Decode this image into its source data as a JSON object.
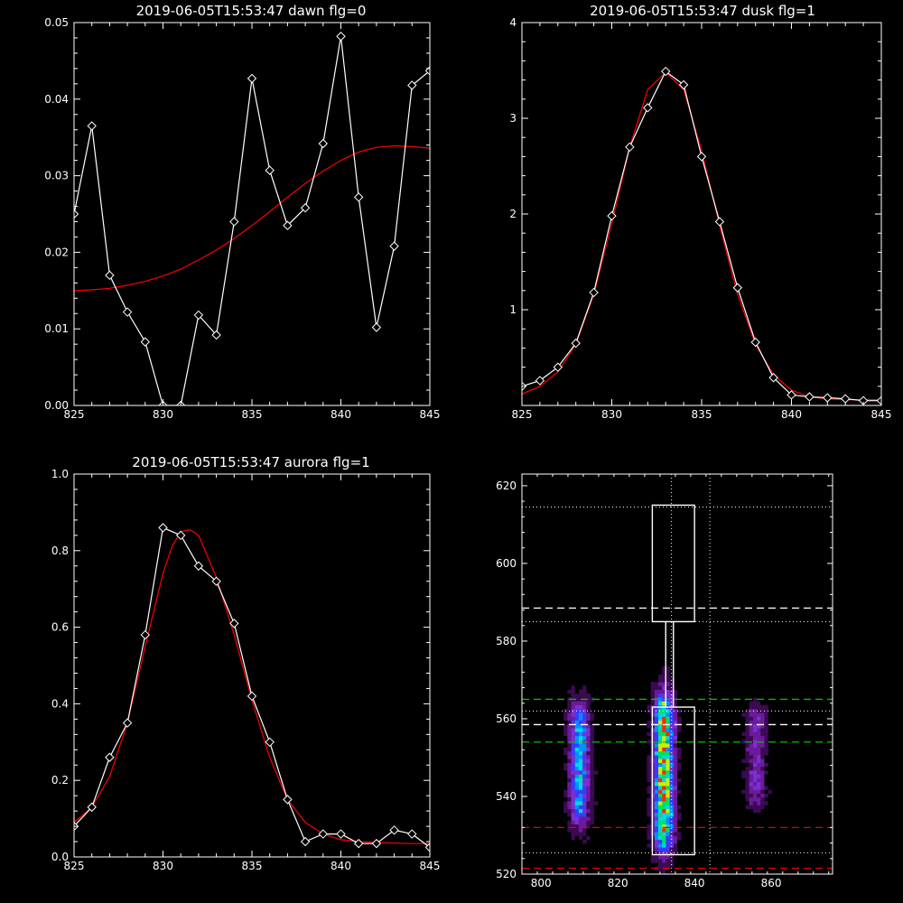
{
  "chart_data": [
    {
      "type": "line",
      "title": "2019-06-05T15:53:47 dawn flg=0",
      "xlim": [
        825,
        845
      ],
      "ylim": [
        0,
        0.05
      ],
      "xticks": [
        "825",
        "830",
        "835",
        "840",
        "845"
      ],
      "yticks": [
        "0.00",
        "0.01",
        "0.02",
        "0.03",
        "0.04",
        "0.05"
      ],
      "series": [
        {
          "color": "#ffffff",
          "marker": "diamond",
          "x": [
            825,
            826,
            827,
            828,
            829,
            830,
            831,
            832,
            833,
            834,
            835,
            836,
            837,
            838,
            839,
            840,
            841,
            842,
            843,
            844,
            845
          ],
          "y": [
            0.025,
            0.0365,
            0.017,
            0.0122,
            0.0083,
            0.0,
            0.0,
            0.0118,
            0.0092,
            0.024,
            0.0427,
            0.0307,
            0.0235,
            0.0258,
            0.0342,
            0.0482,
            0.0272,
            0.0102,
            0.0208,
            0.0418,
            0.0437
          ]
        },
        {
          "color": "#ff0000",
          "marker": "none",
          "x": [
            825,
            826,
            827,
            828,
            829,
            830,
            831,
            832,
            833,
            834,
            835,
            836,
            837,
            838,
            839,
            840,
            841,
            842,
            843,
            844,
            845
          ],
          "y": [
            0.015,
            0.0151,
            0.0153,
            0.0157,
            0.0162,
            0.0169,
            0.0178,
            0.019,
            0.0203,
            0.0218,
            0.0235,
            0.0253,
            0.0272,
            0.029,
            0.0306,
            0.032,
            0.0331,
            0.0337,
            0.0339,
            0.0338,
            0.0336
          ]
        }
      ]
    },
    {
      "type": "line",
      "title": "2019-06-05T15:53:47 dusk flg=1",
      "xlim": [
        825,
        845
      ],
      "ylim": [
        0,
        4
      ],
      "xticks": [
        "825",
        "830",
        "835",
        "840",
        "845"
      ],
      "yticks": [
        "1",
        "2",
        "3",
        "4"
      ],
      "series": [
        {
          "color": "#ffffff",
          "marker": "diamond",
          "x": [
            825,
            826,
            827,
            828,
            829,
            830,
            831,
            832,
            833,
            834,
            835,
            836,
            837,
            838,
            839,
            840,
            841,
            842,
            843,
            844,
            845
          ],
          "y": [
            0.2,
            0.26,
            0.4,
            0.65,
            1.18,
            1.98,
            2.7,
            3.11,
            3.49,
            3.35,
            2.6,
            1.92,
            1.23,
            0.66,
            0.29,
            0.11,
            0.09,
            0.08,
            0.07,
            0.05,
            0.05
          ]
        },
        {
          "color": "#ff0000",
          "marker": "none",
          "x": [
            825,
            826,
            827,
            828,
            829,
            830,
            831,
            832,
            833,
            834,
            835,
            836,
            837,
            838,
            839,
            840,
            841,
            842,
            843,
            844,
            845
          ],
          "y": [
            0.12,
            0.2,
            0.35,
            0.64,
            1.16,
            1.9,
            2.7,
            3.3,
            3.48,
            3.3,
            2.66,
            1.88,
            1.16,
            0.64,
            0.32,
            0.16,
            0.09,
            0.07,
            0.06,
            0.06,
            0.06
          ]
        }
      ]
    },
    {
      "type": "line",
      "title": "2019-06-05T15:53:47 aurora flg=1",
      "xlim": [
        825,
        845
      ],
      "ylim": [
        0,
        1
      ],
      "xticks": [
        "825",
        "830",
        "835",
        "840",
        "845"
      ],
      "yticks": [
        "0.0",
        "0.2",
        "0.4",
        "0.6",
        "0.8",
        "1.0"
      ],
      "series": [
        {
          "color": "#ffffff",
          "marker": "diamond",
          "x": [
            825,
            826,
            827,
            828,
            829,
            830,
            831,
            832,
            833,
            834,
            835,
            836,
            837,
            838,
            839,
            840,
            841,
            842,
            843,
            844,
            845
          ],
          "y": [
            0.08,
            0.13,
            0.26,
            0.35,
            0.58,
            0.86,
            0.84,
            0.76,
            0.72,
            0.61,
            0.42,
            0.3,
            0.15,
            0.04,
            0.06,
            0.06,
            0.035,
            0.035,
            0.07,
            0.06,
            0.025
          ]
        },
        {
          "color": "#ff0000",
          "marker": "none",
          "x": [
            825,
            826,
            827,
            828,
            829,
            830,
            830.5,
            831,
            831.5,
            832,
            833,
            834,
            835,
            836,
            837,
            838,
            839,
            840,
            841,
            842,
            843,
            844,
            845
          ],
          "y": [
            0.09,
            0.13,
            0.21,
            0.35,
            0.55,
            0.74,
            0.81,
            0.85,
            0.855,
            0.84,
            0.73,
            0.58,
            0.41,
            0.26,
            0.15,
            0.09,
            0.06,
            0.045,
            0.04,
            0.038,
            0.036,
            0.035,
            0.035
          ]
        }
      ]
    },
    {
      "type": "heatmap",
      "xlim": [
        795,
        876
      ],
      "ylim": [
        520,
        623
      ],
      "xticks": [
        "800",
        "820",
        "840",
        "860"
      ],
      "yticks": [
        "520",
        "540",
        "560",
        "580",
        "600",
        "620"
      ],
      "colormap": [
        "#000000",
        "#3b0a52",
        "#6a1b9a",
        "#7b2fd0",
        "#3a3aff",
        "#0090ff",
        "#00d8e0",
        "#00e060",
        "#c8f000",
        "#ff2a00"
      ],
      "emission_bands": [
        {
          "x_center": 810,
          "y_range": [
            530,
            567
          ],
          "peak": 0.62
        },
        {
          "x_center": 832,
          "y_range": [
            523,
            570
          ],
          "peak": 0.95
        },
        {
          "x_center": 856,
          "y_range": [
            535,
            566
          ],
          "peak": 0.32
        }
      ],
      "white_boxes": [
        {
          "x": [
            829,
            840
          ],
          "y": [
            525,
            563
          ]
        },
        {
          "x": [
            829,
            840
          ],
          "y": [
            585,
            615
          ]
        }
      ],
      "white_dashed_lines_y": [
        558.5,
        588.5
      ],
      "green_dashed_lines_y": [
        554,
        565
      ],
      "red_dashed_lines_y": [
        521.5,
        532
      ],
      "dotted_lines_y": [
        525.5,
        562,
        585,
        614.5
      ],
      "dotted_lines_x": [
        834,
        844
      ]
    }
  ]
}
